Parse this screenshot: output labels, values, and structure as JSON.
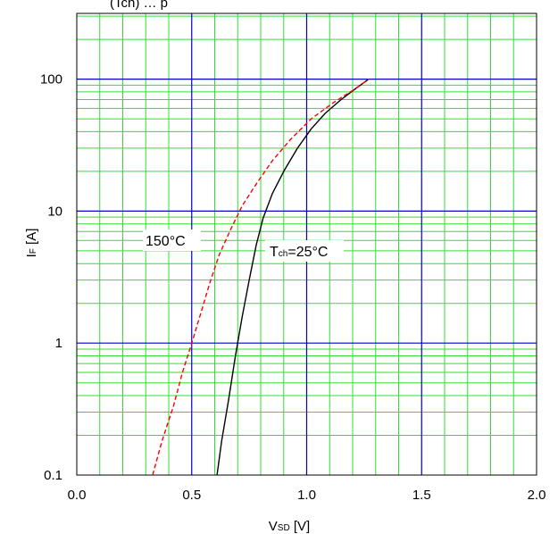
{
  "chart_data": {
    "type": "line",
    "title_fragment": "(Tch) … p",
    "xlabel": {
      "main": "V",
      "sub": "SD",
      "unit": " [V]"
    },
    "ylabel": {
      "main": "I",
      "sub": "F",
      "unit": " [A]"
    },
    "xlim": [
      0.0,
      2.0
    ],
    "ylim": [
      0.1,
      300
    ],
    "y_scale": "log",
    "x_ticks": [
      "0.0",
      "0.5",
      "1.0",
      "1.5",
      "2.0"
    ],
    "x_tick_values": [
      0.0,
      0.5,
      1.0,
      1.5,
      2.0
    ],
    "y_ticks": [
      "0.1",
      "1",
      "10",
      "100"
    ],
    "y_tick_values": [
      0.1,
      1,
      10,
      100
    ],
    "grid": true,
    "colors": {
      "major_grid": "#0000cc",
      "minor_grid": "#33dd33",
      "series_25": "#000000",
      "series_150": "#ff0000"
    },
    "series": [
      {
        "name": "Tch=25°C",
        "label": {
          "main": "T",
          "sub": "ch",
          "rest": "=25°C"
        },
        "style": "solid",
        "color": "#000000",
        "x": [
          0.61,
          0.63,
          0.66,
          0.69,
          0.72,
          0.75,
          0.78,
          0.81,
          0.85,
          0.9,
          0.96,
          1.02,
          1.08,
          1.15,
          1.21,
          1.27
        ],
        "y": [
          0.1,
          0.18,
          0.37,
          0.8,
          1.6,
          3.0,
          5.5,
          8.8,
          13.5,
          20,
          30,
          42,
          55,
          70,
          84,
          100
        ]
      },
      {
        "name": "150°C",
        "label": {
          "main": "150°C"
        },
        "style": "dashed",
        "color": "#ff0000",
        "x": [
          0.33,
          0.37,
          0.42,
          0.46,
          0.5,
          0.54,
          0.58,
          0.62,
          0.67,
          0.72,
          0.78,
          0.85,
          0.93,
          1.02,
          1.12,
          1.2,
          1.27
        ],
        "y": [
          0.1,
          0.18,
          0.33,
          0.6,
          1.0,
          1.7,
          2.9,
          4.7,
          7.3,
          11,
          16,
          24,
          35,
          50,
          67,
          82,
          100
        ]
      }
    ]
  }
}
